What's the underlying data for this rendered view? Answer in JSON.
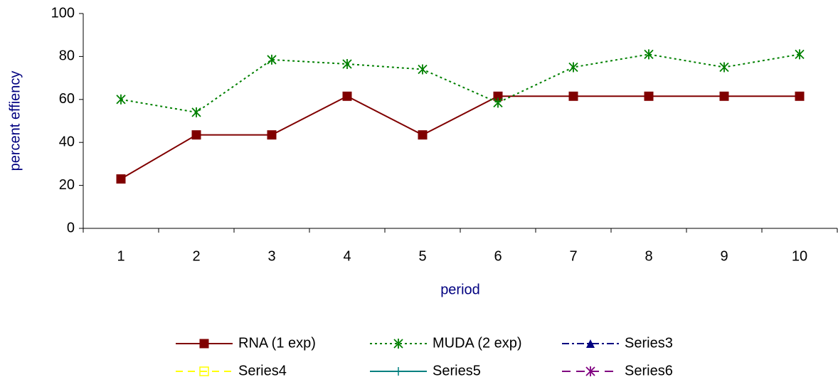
{
  "chart_data": {
    "type": "line",
    "x_label": "period",
    "y_label": "percent effiency",
    "categories": [
      "1",
      "2",
      "3",
      "4",
      "5",
      "6",
      "7",
      "8",
      "9",
      "10"
    ],
    "series": [
      {
        "name": "RNA (1 exp)",
        "color": "#800000",
        "marker": "square",
        "dash": "solid",
        "values": [
          23,
          43.5,
          43.5,
          61.5,
          43.5,
          61.5,
          61.5,
          61.5,
          61.5,
          61.5
        ]
      },
      {
        "name": "MUDA (2 exp)",
        "color": "#008000",
        "marker": "star",
        "dash": "dot",
        "values": [
          60,
          54,
          78.5,
          76.5,
          74,
          58.5,
          75,
          81,
          75,
          81
        ]
      },
      {
        "name": "Series3",
        "color": "#000080",
        "marker": "triangle",
        "dash": "dashdot",
        "values": [
          null,
          null,
          null,
          null,
          null,
          null,
          null,
          null,
          null,
          null
        ]
      },
      {
        "name": "Series4",
        "color": "#ffff00",
        "marker": "open-square",
        "dash": "dash",
        "values": [
          null,
          null,
          null,
          null,
          null,
          null,
          null,
          null,
          null,
          null
        ]
      },
      {
        "name": "Series5",
        "color": "#008080",
        "marker": "plus",
        "dash": "solid",
        "values": [
          null,
          null,
          null,
          null,
          null,
          null,
          null,
          null,
          null,
          null
        ]
      },
      {
        "name": "Series6",
        "color": "#800080",
        "marker": "asterisk",
        "dash": "longdash",
        "values": [
          null,
          null,
          null,
          null,
          null,
          null,
          null,
          null,
          null,
          null
        ]
      }
    ],
    "ylim": [
      0,
      100
    ],
    "yticks": [
      0,
      20,
      40,
      60,
      80,
      100
    ],
    "grid": false,
    "legend": "bottom"
  }
}
